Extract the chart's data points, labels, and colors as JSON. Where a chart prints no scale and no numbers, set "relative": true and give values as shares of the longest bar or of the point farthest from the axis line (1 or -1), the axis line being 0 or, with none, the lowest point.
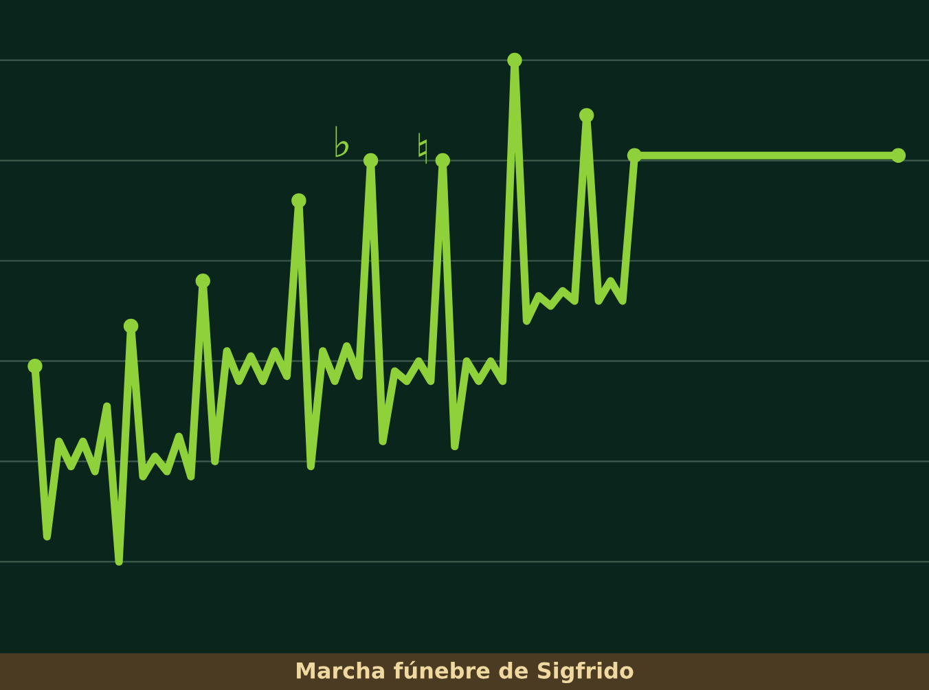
{
  "chart_data": {
    "type": "line",
    "title": "Marcha fúnebre de Sigfrido",
    "relative": true,
    "grid": "y",
    "categories": [
      null,
      null,
      null,
      null,
      null,
      null,
      null,
      null,
      null,
      null,
      null,
      null,
      null,
      null,
      null,
      null,
      null,
      null,
      null,
      null,
      null,
      null,
      null,
      null,
      null,
      null,
      null,
      null,
      null,
      null,
      null,
      null,
      null,
      null,
      null,
      null,
      null,
      null,
      null,
      null,
      null,
      null,
      null,
      null,
      null,
      null,
      null,
      null,
      null,
      null,
      null,
      null,
      null,
      null,
      null,
      null,
      null,
      null,
      null,
      null,
      null,
      null,
      null,
      null,
      null,
      null,
      null,
      null,
      null,
      null,
      null,
      null,
      null
    ],
    "series": [
      {
        "color": "#8fd13a",
        "values": [
          0.39,
          0.05,
          0.24,
          0.19,
          0.24,
          0.18,
          0.31,
          0,
          0.47,
          0.17,
          0.21,
          0.18,
          0.25,
          0.17,
          0.56,
          0.2,
          0.42,
          0.36,
          0.41,
          0.36,
          0.42,
          0.37,
          0.72,
          0.19,
          0.42,
          0.36,
          0.43,
          0.37,
          0.8,
          0.24,
          0.38,
          0.36,
          0.4,
          0.36,
          0.8,
          0.23,
          0.4,
          0.36,
          0.4,
          0.36,
          1,
          0.48,
          0.53,
          0.51,
          0.54,
          0.52,
          0.89,
          0.52,
          0.56,
          0.52,
          0.81,
          0.81,
          0.81,
          0.81,
          0.81,
          0.81,
          0.81,
          0.81,
          0.81,
          0.81,
          0.81,
          0.81,
          0.81,
          0.81,
          0.81,
          0.81,
          0.81,
          0.81,
          0.81,
          0.81,
          0.81,
          0.81,
          0.81
        ]
      }
    ],
    "annotations": [
      "♭",
      "♮"
    ]
  }
}
